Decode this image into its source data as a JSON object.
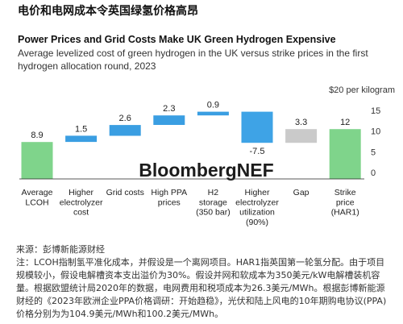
{
  "headline": "电价和电网成本令英国绿氢价格高昂",
  "chart_data": {
    "type": "bar",
    "stacking": "waterfall",
    "title": "Power Prices and Grid Costs Make UK Green Hydrogen Expensive",
    "subtitle": "Average levelized cost of green hydrogen in the UK versus strike prices in the first hydrogen allocation round, 2023",
    "unit_label": "$20 per kilogram",
    "ylim": [
      0,
      20
    ],
    "y_ticks": [
      15,
      10,
      5,
      0
    ],
    "y_axis": "right",
    "grid": false,
    "bars": [
      {
        "label_lines": [
          "Average",
          "LCOH"
        ],
        "value": 8.9,
        "total": true,
        "color": "#7fd48b"
      },
      {
        "label_lines": [
          "Higher",
          "electrolyzer",
          "cost"
        ],
        "value": 1.5,
        "total": false,
        "color": "#3a9ee2"
      },
      {
        "label_lines": [
          "Grid costs"
        ],
        "value": 2.6,
        "total": false,
        "color": "#3a9ee2"
      },
      {
        "label_lines": [
          "High PPA",
          "prices"
        ],
        "value": 2.3,
        "total": false,
        "color": "#3a9ee2"
      },
      {
        "label_lines": [
          "H2",
          "storage",
          "(350 bar)"
        ],
        "value": 0.9,
        "total": false,
        "color": "#3a9ee2"
      },
      {
        "label_lines": [
          "Higher",
          "electrolyzer",
          "utilization",
          "(90%)"
        ],
        "value": -7.5,
        "total": false,
        "color": "#3ea3e6"
      },
      {
        "label_lines": [
          "Gap"
        ],
        "value": 3.3,
        "total": false,
        "color": "#cacaca"
      },
      {
        "label_lines": [
          "Strike",
          "price",
          "(HAR1)"
        ],
        "value": 12,
        "total": true,
        "color": "#7fd48b"
      }
    ]
  },
  "watermark": "BloombergNEF",
  "notes": {
    "source": "来源：彭博新能源财经",
    "body": "注：LCOH指制氢平准化成本，并假设是一个离网项目。HAR1指英国第一轮氢分配。由于项目规模较小，假设电解槽资本支出溢价为30%。假设并网和软成本为350美元/kW电解槽装机容量。根据欧盟统计局2020年的数据，电网费用和税项成本为26.3美元/MWh。根据彭博新能源财经的《2023年欧洲企业PPA价格调研：开始趋稳》，光伏和陆上风电的10年期购电协议(PPA)价格分别为为104.9美元/MWh和100.2美元/MWh。"
  }
}
